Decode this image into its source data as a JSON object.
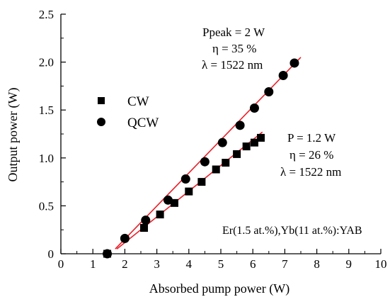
{
  "chart_data": {
    "type": "scatter",
    "xlabel": "Absorbed pump power (W)",
    "ylabel": "Output power (W)",
    "xlim": [
      0,
      10
    ],
    "ylim": [
      0,
      2.5
    ],
    "xticks": [
      "0",
      "1",
      "2",
      "3",
      "4",
      "5",
      "6",
      "7",
      "8",
      "9",
      "10"
    ],
    "yticks": [
      "0",
      "0.5",
      "1.0",
      "1.5",
      "2.0",
      "2.5"
    ],
    "grid": false,
    "legend_position": "center-left",
    "fit_line_color": "#e8202a",
    "marker_color": "#000000",
    "series": [
      {
        "name": "CW",
        "marker": "square",
        "x": [
          1.45,
          2.6,
          3.1,
          3.55,
          4.0,
          4.4,
          4.85,
          5.15,
          5.5,
          5.8,
          6.05,
          6.25
        ],
        "y": [
          0.0,
          0.27,
          0.41,
          0.53,
          0.65,
          0.75,
          0.88,
          0.95,
          1.04,
          1.12,
          1.16,
          1.21
        ],
        "fit": {
          "x": [
            1.75,
            6.3
          ],
          "y": [
            0.05,
            1.27
          ]
        }
      },
      {
        "name": "QCW",
        "marker": "circle",
        "x": [
          1.45,
          2.0,
          2.65,
          3.35,
          3.9,
          4.5,
          5.05,
          5.6,
          6.05,
          6.5,
          6.95,
          7.3
        ],
        "y": [
          0.0,
          0.16,
          0.35,
          0.56,
          0.78,
          0.96,
          1.16,
          1.34,
          1.52,
          1.69,
          1.86,
          1.99
        ],
        "fit": {
          "x": [
            1.7,
            7.5
          ],
          "y": [
            0.05,
            2.05
          ]
        }
      }
    ],
    "annotations": {
      "qcw": [
        "Ppeak = 2 W",
        "η = 35 %",
        "λ = 1522 nm"
      ],
      "cw": [
        "P = 1.2 W",
        "η = 26 %",
        "λ = 1522 nm"
      ],
      "material": "Er(1.5 at.%),Yb(11 at.%):YAB"
    }
  }
}
